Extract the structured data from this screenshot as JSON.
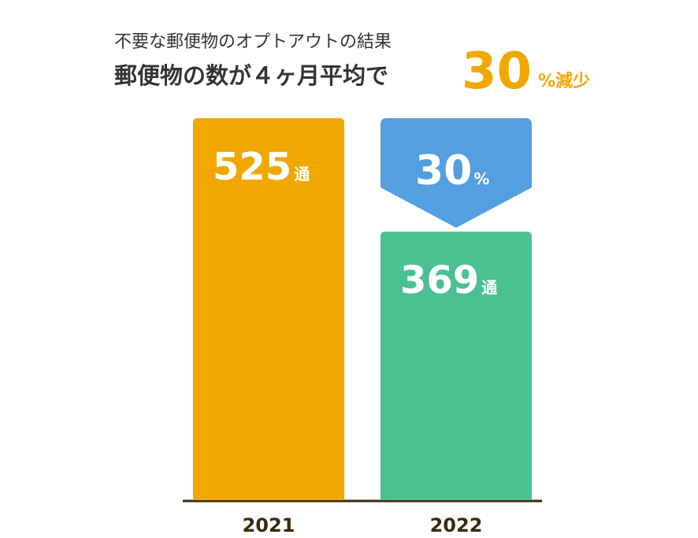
{
  "chart_data": {
    "type": "bar",
    "headline": {
      "line1": "不要な郵便物のオプトアウトの結果",
      "line2": "郵便物の数が４ヶ月平均で",
      "reduction": 30,
      "suffix": "%減少"
    },
    "categories": [
      "2021",
      "2022"
    ],
    "values": [
      525,
      369
    ],
    "unit": "通",
    "colors": [
      "#f0a800",
      "#4bc192"
    ],
    "badge": {
      "value": 30,
      "unit": "%",
      "color": "#539fe0"
    }
  }
}
